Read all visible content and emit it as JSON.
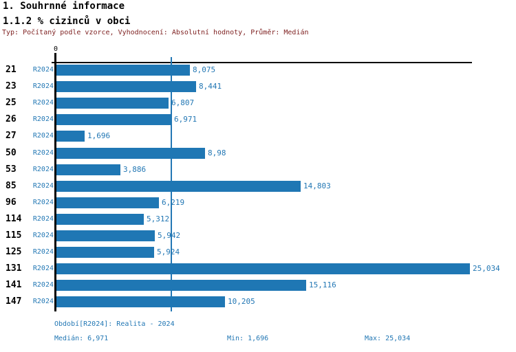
{
  "header": {
    "title_line1": "1. Souhrnné informace",
    "title_line2": "1.1.2 % cizinců v obci",
    "subtitle": "Typ: Počítaný podle vzorce, Vyhodnocení: Absolutní hodnoty, Průměr: Medián"
  },
  "chart_data": {
    "type": "bar",
    "orientation": "horizontal",
    "title": "1.1.2 % cizinců v obci",
    "series_label": "R2024",
    "axis": {
      "zero_label": "0",
      "xlim": [
        0,
        25.034
      ],
      "grid": false,
      "legend_position": "none"
    },
    "median_value": 6.971,
    "categories": [
      "21",
      "23",
      "25",
      "26",
      "27",
      "50",
      "53",
      "85",
      "96",
      "114",
      "115",
      "125",
      "131",
      "141",
      "147"
    ],
    "rows": [
      {
        "id": "21",
        "period": "R2024",
        "value": 8.075,
        "value_label": "8,075"
      },
      {
        "id": "23",
        "period": "R2024",
        "value": 8.441,
        "value_label": "8,441"
      },
      {
        "id": "25",
        "period": "R2024",
        "value": 6.807,
        "value_label": "6,807"
      },
      {
        "id": "26",
        "period": "R2024",
        "value": 6.971,
        "value_label": "6,971"
      },
      {
        "id": "27",
        "period": "R2024",
        "value": 1.696,
        "value_label": "1,696"
      },
      {
        "id": "50",
        "period": "R2024",
        "value": 8.98,
        "value_label": "8,98"
      },
      {
        "id": "53",
        "period": "R2024",
        "value": 3.886,
        "value_label": "3,886"
      },
      {
        "id": "85",
        "period": "R2024",
        "value": 14.803,
        "value_label": "14,803"
      },
      {
        "id": "96",
        "period": "R2024",
        "value": 6.219,
        "value_label": "6,219"
      },
      {
        "id": "114",
        "period": "R2024",
        "value": 5.312,
        "value_label": "5,312"
      },
      {
        "id": "115",
        "period": "R2024",
        "value": 5.942,
        "value_label": "5,942"
      },
      {
        "id": "125",
        "period": "R2024",
        "value": 5.924,
        "value_label": "5,924"
      },
      {
        "id": "131",
        "period": "R2024",
        "value": 25.034,
        "value_label": "25,034"
      },
      {
        "id": "141",
        "period": "R2024",
        "value": 15.116,
        "value_label": "15,116"
      },
      {
        "id": "147",
        "period": "R2024",
        "value": 10.205,
        "value_label": "10,205"
      }
    ]
  },
  "footer": {
    "period_line": "Období[R2024]: Realita - 2024",
    "median_label": "Medián: 6,971",
    "min_label": "Min: 1,696",
    "max_label": "Max: 25,034"
  },
  "colors": {
    "bar": "#1f77b4",
    "accent_text": "#2277b4",
    "median_line": "#2277b4",
    "subtitle_text": "#7d1f1f",
    "axis": "#000000",
    "background": "#ffffff"
  }
}
